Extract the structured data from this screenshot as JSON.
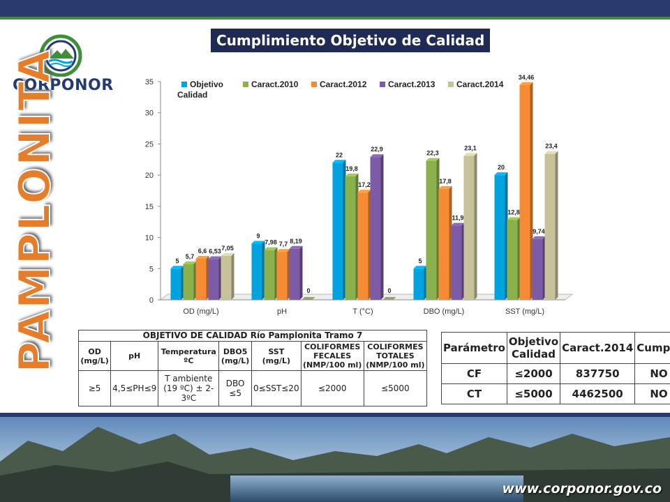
{
  "slide": {
    "title": "Cumplimiento Objetivo de Calidad",
    "vertical_title": "PAMPLONITA",
    "logo_text": "CORPONOR",
    "url": "www.corponor.gov.co"
  },
  "colors": {
    "Objetivo Calidad": "#00a3e0",
    "Caract.2010": "#8bb14c",
    "Caract.2012": "#f68b34",
    "Caract.2013": "#7d5ba6",
    "Caract.2014": "#c8c29b"
  },
  "chart_data": {
    "type": "bar",
    "categories": [
      "OD (mg/L)",
      "pH",
      "T (°C)",
      "DBO (mg/L)",
      "SST (mg/L)"
    ],
    "ylim": [
      0,
      35
    ],
    "yticks": [
      0,
      5,
      10,
      15,
      20,
      25,
      30,
      35
    ],
    "legend_position": "top",
    "series": [
      {
        "name": "Objetivo Calidad",
        "values": [
          5,
          9,
          22,
          5,
          20
        ],
        "labels": [
          "5",
          "9",
          "22",
          "5",
          "20"
        ]
      },
      {
        "name": "Caract.2010",
        "values": [
          5.7,
          7.98,
          19.8,
          22.3,
          12.8
        ],
        "labels": [
          "5,7",
          "7,98",
          "19,8",
          "22,3",
          "12,8"
        ]
      },
      {
        "name": "Caract.2012",
        "values": [
          6.6,
          7.7,
          17.2,
          17.8,
          34.46
        ],
        "labels": [
          "6,6",
          "7,7",
          "17,2",
          "17,8",
          "34,46"
        ]
      },
      {
        "name": "Caract.2013",
        "values": [
          6.53,
          8.19,
          22.9,
          11.9,
          9.74
        ],
        "labels": [
          "6,53",
          "8,19",
          "22,9",
          "11,9",
          "9,74"
        ]
      },
      {
        "name": "Caract.2014",
        "values": [
          7.05,
          0,
          0,
          23.1,
          23.4
        ],
        "labels": [
          "7,05",
          "0",
          "0",
          "23,1",
          "23,4"
        ]
      }
    ]
  },
  "objective_table": {
    "caption": "OBJETIVO DE CALIDAD Río Pamplonita Tramo 7",
    "headers": [
      "OD (mg/L)",
      "pH",
      "Temperatura ºC",
      "DBO5 (mg/L)",
      "SST (mg/L)",
      "COLIFORMES FECALES (NMP/100 ml)",
      "COLIFORMES TOTALES (NMP/100 ml)"
    ],
    "values": [
      "≥5",
      "4,5≤PH≤9",
      "T ambiente (19 ºC) ± 2-3ºC",
      "DBO ≤5",
      "0≤SST≤20",
      "≤2000",
      "≤5000"
    ]
  },
  "compliance_table": {
    "headers": [
      "Parámetro",
      "Objetivo Calidad",
      "Caract.2014",
      "Cumple"
    ],
    "rows": [
      [
        "CF",
        "≤2000",
        "837750",
        "NO"
      ],
      [
        "CT",
        "≤5000",
        "4462500",
        "NO"
      ]
    ]
  }
}
